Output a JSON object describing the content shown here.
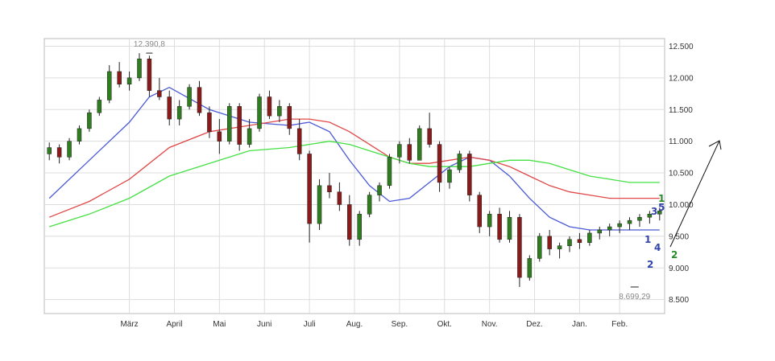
{
  "chart_data": {
    "type": "candlestick",
    "title": "",
    "xlabel": "",
    "ylabel": "",
    "ylim": [
      8280,
      12620
    ],
    "grid": true,
    "y_ticks": [
      12500,
      12000,
      11500,
      11000,
      10500,
      10000,
      9500,
      9000,
      8500
    ],
    "y_tick_labels": [
      "12.500",
      "12.000",
      "11.500",
      "11.000",
      "10.500",
      "10.000",
      "9.500",
      "9.000",
      "8.500"
    ],
    "x_ticks": [
      {
        "label": "März",
        "week": 8
      },
      {
        "label": "April",
        "week": 12.5
      },
      {
        "label": "Mai",
        "week": 17
      },
      {
        "label": "Juni",
        "week": 21.5
      },
      {
        "label": "Juli",
        "week": 26
      },
      {
        "label": "Aug.",
        "week": 30.5
      },
      {
        "label": "Sep.",
        "week": 35
      },
      {
        "label": "Okt.",
        "week": 39.5
      },
      {
        "label": "Nov.",
        "week": 44
      },
      {
        "label": "Dez.",
        "week": 48.5
      },
      {
        "label": "Jan.",
        "week": 53
      },
      {
        "label": "Feb.",
        "week": 57
      }
    ],
    "annotations": {
      "high": {
        "label": "12.390,8",
        "week": 10,
        "value": 12390.8
      },
      "low": {
        "label": "8.699,29",
        "week": 58.5,
        "value": 8699.29
      }
    },
    "colors": {
      "up": "#2e7d1e",
      "down": "#8b1a1a",
      "ma_fast": "#4a5ad6",
      "ma_mid": "#e04848",
      "ma_slow": "#44e044",
      "wave_blue": "#3344aa",
      "wave_green": "#2a8a2a",
      "grid": "#dddddd"
    },
    "series": [
      {
        "name": "",
        "type": "candlestick",
        "color": "#8b1a1a",
        "x": [
          0,
          1,
          2,
          3,
          4,
          5,
          6,
          7,
          8,
          9,
          10,
          11,
          12,
          13,
          14,
          15,
          16,
          17,
          18,
          19,
          20,
          21,
          22,
          23,
          24,
          25,
          26,
          27,
          28,
          29,
          30,
          31,
          32,
          33,
          34,
          35,
          36,
          37,
          38,
          39,
          40,
          41,
          42,
          43,
          44,
          45,
          46,
          47,
          48,
          49,
          50,
          51,
          52,
          53,
          54,
          55,
          56,
          57,
          58,
          59,
          60,
          61
        ],
        "ohlc": [
          [
            10800,
            10980,
            10700,
            10900
          ],
          [
            10900,
            10950,
            10650,
            10750
          ],
          [
            10750,
            11050,
            10700,
            11000
          ],
          [
            11000,
            11250,
            10950,
            11200
          ],
          [
            11200,
            11500,
            11150,
            11450
          ],
          [
            11450,
            11700,
            11400,
            11650
          ],
          [
            11650,
            12200,
            11600,
            12100
          ],
          [
            12100,
            12250,
            11850,
            11900
          ],
          [
            11900,
            12100,
            11800,
            12000
          ],
          [
            12000,
            12390,
            11950,
            12300
          ],
          [
            12300,
            12350,
            11700,
            11800
          ],
          [
            11800,
            12000,
            11650,
            11700
          ],
          [
            11700,
            11800,
            11250,
            11350
          ],
          [
            11350,
            11650,
            11250,
            11550
          ],
          [
            11550,
            11900,
            11500,
            11850
          ],
          [
            11850,
            11950,
            11400,
            11450
          ],
          [
            11450,
            11550,
            11050,
            11150
          ],
          [
            11150,
            11350,
            10800,
            11000
          ],
          [
            11000,
            11600,
            10950,
            11550
          ],
          [
            11550,
            11600,
            10850,
            10950
          ],
          [
            10950,
            11350,
            10900,
            11200
          ],
          [
            11200,
            11750,
            11150,
            11700
          ],
          [
            11700,
            11800,
            11350,
            11400
          ],
          [
            11400,
            11650,
            11300,
            11550
          ],
          [
            11550,
            11600,
            11100,
            11200
          ],
          [
            11200,
            11350,
            10700,
            10800
          ],
          [
            10800,
            10850,
            9400,
            9700
          ],
          [
            9700,
            10400,
            9600,
            10300
          ],
          [
            10300,
            10500,
            10100,
            10200
          ],
          [
            10200,
            10350,
            9900,
            10000
          ],
          [
            10000,
            10150,
            9350,
            9450
          ],
          [
            9450,
            9900,
            9350,
            9850
          ],
          [
            9850,
            10200,
            9800,
            10150
          ],
          [
            10150,
            10350,
            10050,
            10300
          ],
          [
            10300,
            10800,
            10250,
            10750
          ],
          [
            10750,
            11000,
            10650,
            10950
          ],
          [
            10950,
            11050,
            10650,
            10700
          ],
          [
            10700,
            11250,
            10700,
            11200
          ],
          [
            11200,
            11450,
            10900,
            10950
          ],
          [
            10950,
            11000,
            10200,
            10350
          ],
          [
            10350,
            10600,
            10250,
            10550
          ],
          [
            10550,
            10850,
            10500,
            10800
          ],
          [
            10800,
            10850,
            10050,
            10150
          ],
          [
            10150,
            10200,
            9550,
            9650
          ],
          [
            9650,
            9900,
            9500,
            9850
          ],
          [
            9850,
            9950,
            9400,
            9450
          ],
          [
            9450,
            9900,
            9400,
            9800
          ],
          [
            9800,
            9850,
            8699.29,
            8850
          ],
          [
            8850,
            9200,
            8800,
            9150
          ],
          [
            9150,
            9550,
            9100,
            9500
          ],
          [
            9500,
            9600,
            9200,
            9300
          ],
          [
            9300,
            9400,
            9150,
            9350
          ],
          [
            9350,
            9500,
            9250,
            9450
          ],
          [
            9450,
            9550,
            9300,
            9400
          ],
          [
            9400,
            9600,
            9350,
            9550
          ],
          [
            9550,
            9650,
            9450,
            9600
          ],
          [
            9600,
            9700,
            9500,
            9650
          ],
          [
            9650,
            9750,
            9550,
            9700
          ],
          [
            9700,
            9800,
            9600,
            9750
          ],
          [
            9750,
            9850,
            9650,
            9800
          ],
          [
            9800,
            9900,
            9700,
            9850
          ],
          [
            9850,
            9950,
            9750,
            9900
          ]
        ]
      },
      {
        "name": "",
        "type": "line",
        "color": "#4a5ad6",
        "x": [
          0,
          4,
          8,
          10,
          12,
          16,
          20,
          24,
          26,
          28,
          30,
          32,
          34,
          36,
          38,
          40,
          42,
          44,
          46,
          48,
          50,
          52,
          54,
          56,
          58,
          60,
          61
        ],
        "values": [
          10100,
          10700,
          11300,
          11700,
          11850,
          11500,
          11300,
          11250,
          11300,
          11150,
          10700,
          10300,
          10050,
          10100,
          10350,
          10600,
          10750,
          10700,
          10450,
          10100,
          9800,
          9650,
          9600,
          9600,
          9600,
          9600,
          9600
        ]
      },
      {
        "name": "",
        "type": "line",
        "color": "#e04848",
        "x": [
          0,
          4,
          8,
          12,
          16,
          20,
          24,
          26,
          28,
          30,
          32,
          34,
          36,
          38,
          40,
          42,
          44,
          46,
          48,
          50,
          52,
          54,
          56,
          58,
          60,
          61
        ],
        "values": [
          9800,
          10050,
          10400,
          10900,
          11150,
          11250,
          11350,
          11350,
          11300,
          11150,
          10950,
          10750,
          10650,
          10650,
          10700,
          10750,
          10700,
          10600,
          10450,
          10300,
          10200,
          10150,
          10100,
          10100,
          10100,
          10100
        ]
      },
      {
        "name": "",
        "type": "line",
        "color": "#44e044",
        "x": [
          0,
          4,
          8,
          12,
          16,
          20,
          24,
          26,
          28,
          30,
          32,
          34,
          36,
          38,
          40,
          42,
          44,
          46,
          48,
          50,
          52,
          54,
          56,
          58,
          60,
          61
        ],
        "values": [
          9650,
          9850,
          10100,
          10450,
          10650,
          10850,
          10900,
          10950,
          11000,
          10950,
          10850,
          10750,
          10650,
          10600,
          10600,
          10600,
          10650,
          10700,
          10700,
          10650,
          10550,
          10450,
          10400,
          10350,
          10350,
          10350
        ]
      }
    ]
  }
}
